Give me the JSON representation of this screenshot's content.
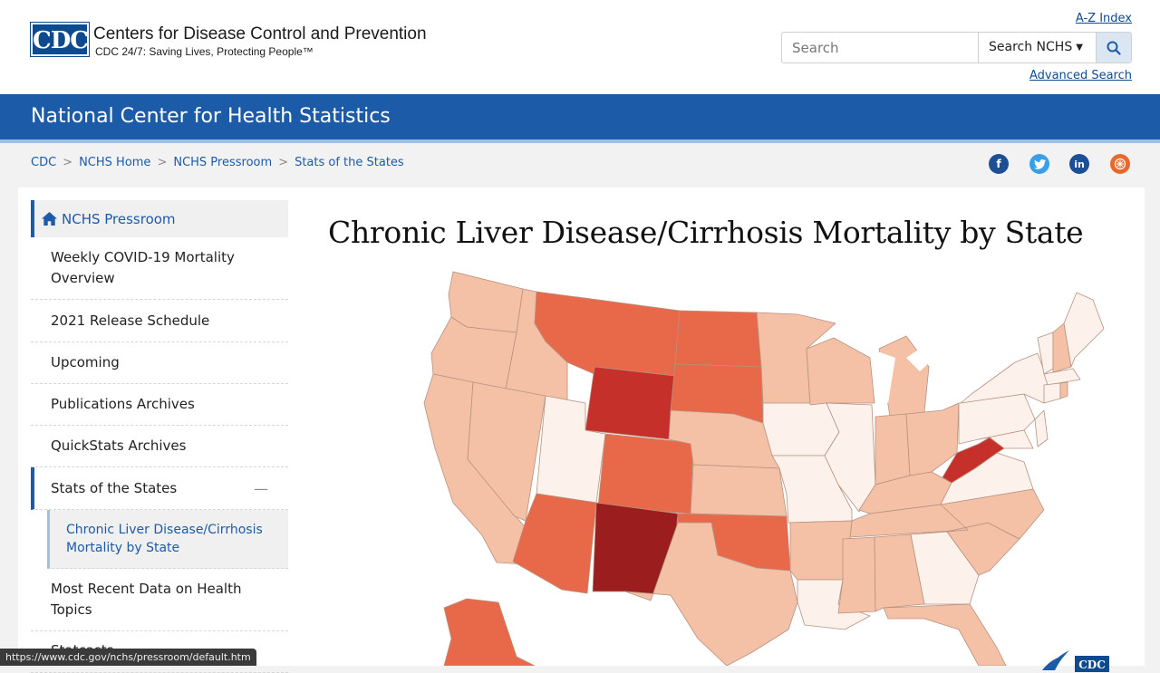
{
  "header": {
    "logo_text": "CDC",
    "org_name": "Centers for Disease Control and Prevention",
    "tagline": "CDC 24/7: Saving Lives, Protecting People™",
    "az_index": "A-Z Index",
    "search_placeholder": "Search",
    "search_scope": "Search NCHS",
    "advanced_search": "Advanced Search"
  },
  "site": {
    "title": "National Center for Health Statistics"
  },
  "breadcrumb": [
    "CDC",
    "NCHS Home",
    "NCHS Pressroom",
    "Stats of the States"
  ],
  "social": [
    "facebook-icon",
    "twitter-icon",
    "linkedin-icon",
    "syndicate-icon"
  ],
  "sidebar": {
    "heading": "NCHS Pressroom",
    "items": [
      {
        "label": "Weekly COVID-19 Mortality Overview"
      },
      {
        "label": "2021 Release Schedule"
      },
      {
        "label": "Upcoming"
      },
      {
        "label": "Publications Archives"
      },
      {
        "label": "QuickStats Archives"
      },
      {
        "label": "Stats of the States",
        "expanded": true
      },
      {
        "label": "Chronic Liver Disease/Cirrhosis Mortality by State",
        "current": true
      },
      {
        "label": "Most Recent Data on Health Topics"
      },
      {
        "label": "Statcasts"
      }
    ]
  },
  "main": {
    "title": "Chronic Liver Disease/Cirrhosis Mortality by State"
  },
  "map": {
    "colors": {
      "lightest": "#fdf1ec",
      "light": "#f4c1a6",
      "medium": "#e8694a",
      "dark": "#c6302a",
      "darkest": "#9b1d1d"
    }
  },
  "status_bar": {
    "url": "https://www.cdc.gov/nchs/pressroom/default.htm"
  }
}
